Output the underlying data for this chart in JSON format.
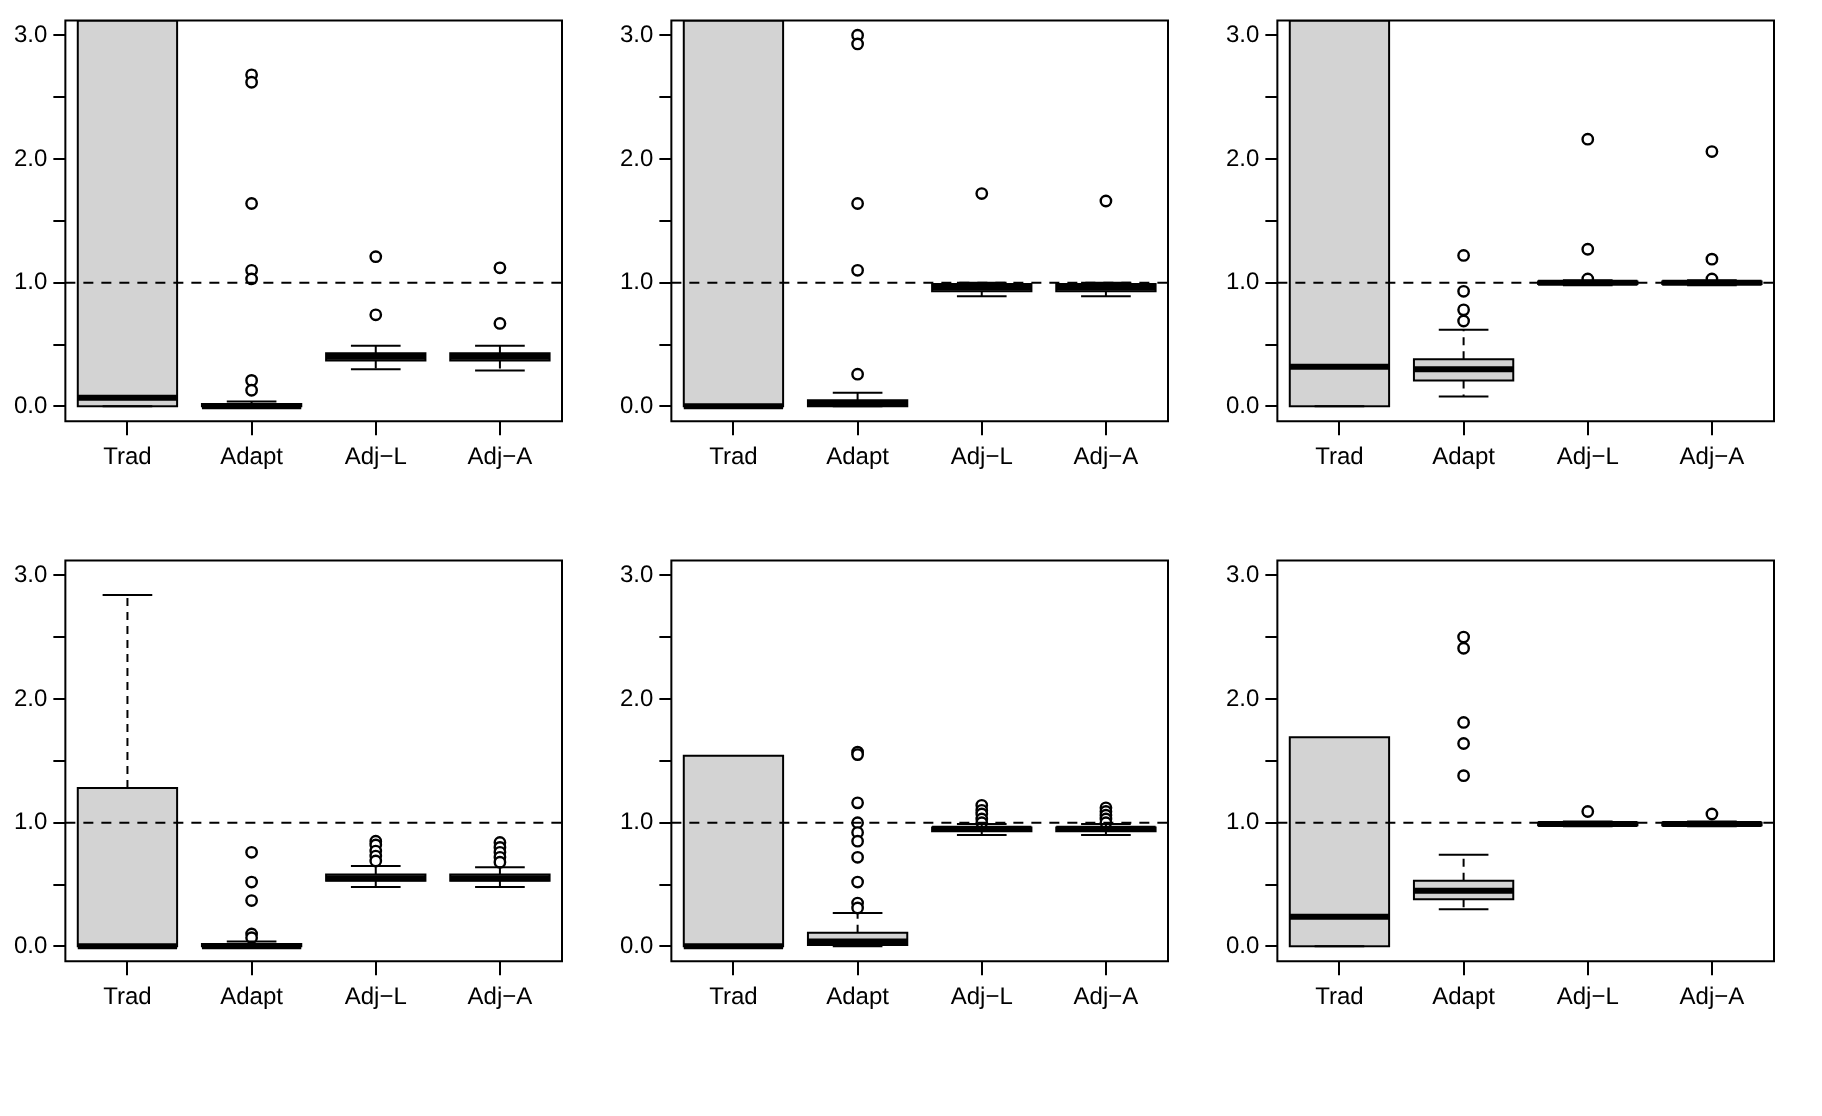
{
  "chart_data": [
    {
      "type": "box",
      "categories": [
        "Trad",
        "Adapt",
        "Adj−L",
        "Adj−A"
      ],
      "color": "#d3d3d3",
      "grid": false,
      "legend": false,
      "ylim": [
        -0.12,
        3.12
      ],
      "yticks": [
        {
          "value": 0,
          "label": "0.0"
        },
        {
          "value": 0.5,
          "label": null
        },
        {
          "value": 1,
          "label": "1.0"
        },
        {
          "value": 1.5,
          "label": null
        },
        {
          "value": 2,
          "label": "2.0"
        },
        {
          "value": 2.5,
          "label": null
        },
        {
          "value": 3,
          "label": "3.0"
        }
      ],
      "ref_lines": [
        {
          "axis": "y",
          "value": 1,
          "line_style": "dashed"
        }
      ],
      "boxes": [
        {
          "low": 0,
          "q1": 0,
          "median": 0.07,
          "q3": 3.12,
          "high": null
        },
        {
          "low": 0,
          "q1": 0,
          "median": 0,
          "q3": 0.02,
          "high": 0.04,
          "outliers": [
            0.13,
            0.21,
            1.03,
            1.1,
            1.64,
            2.62,
            2.68
          ]
        },
        {
          "low": 0.3,
          "q1": 0.37,
          "median": 0.4,
          "q3": 0.43,
          "high": 0.49,
          "outliers": [
            0.74,
            1.21
          ]
        },
        {
          "low": 0.29,
          "q1": 0.37,
          "median": 0.4,
          "q3": 0.43,
          "high": 0.49,
          "outliers": [
            0.67,
            1.12
          ]
        }
      ]
    },
    {
      "type": "box",
      "categories": [
        "Trad",
        "Adapt",
        "Adj−L",
        "Adj−A"
      ],
      "color": "#d3d3d3",
      "grid": false,
      "legend": false,
      "ylim": [
        -0.12,
        3.12
      ],
      "yticks": [
        {
          "value": 0,
          "label": "0.0"
        },
        {
          "value": 0.5,
          "label": null
        },
        {
          "value": 1,
          "label": "1.0"
        },
        {
          "value": 1.5,
          "label": null
        },
        {
          "value": 2,
          "label": "2.0"
        },
        {
          "value": 2.5,
          "label": null
        },
        {
          "value": 3,
          "label": "3.0"
        }
      ],
      "ref_lines": [
        {
          "axis": "y",
          "value": 1,
          "line_style": "dashed"
        }
      ],
      "boxes": [
        {
          "low": 0,
          "q1": 0,
          "median": 0,
          "q3": 3.12,
          "high": null
        },
        {
          "low": 0,
          "q1": 0,
          "median": 0.02,
          "q3": 0.05,
          "high": 0.11,
          "outliers": [
            0.26,
            1.1,
            1.64,
            2.93,
            3.0
          ]
        },
        {
          "low": 0.89,
          "q1": 0.93,
          "median": 0.96,
          "q3": 0.99,
          "high": 1.0,
          "outliers": [
            1.72
          ]
        },
        {
          "low": 0.89,
          "q1": 0.93,
          "median": 0.96,
          "q3": 0.99,
          "high": 1.0,
          "outliers": [
            1.66
          ]
        }
      ]
    },
    {
      "type": "box",
      "categories": [
        "Trad",
        "Adapt",
        "Adj−L",
        "Adj−A"
      ],
      "color": "#d3d3d3",
      "grid": false,
      "legend": false,
      "ylim": [
        -0.12,
        3.12
      ],
      "yticks": [
        {
          "value": 0,
          "label": "0.0"
        },
        {
          "value": 0.5,
          "label": null
        },
        {
          "value": 1,
          "label": "1.0"
        },
        {
          "value": 1.5,
          "label": null
        },
        {
          "value": 2,
          "label": "2.0"
        },
        {
          "value": 2.5,
          "label": null
        },
        {
          "value": 3,
          "label": "3.0"
        }
      ],
      "ref_lines": [
        {
          "axis": "y",
          "value": 1,
          "line_style": "dashed"
        }
      ],
      "boxes": [
        {
          "low": 0,
          "q1": 0,
          "median": 0.32,
          "q3": 3.12,
          "high": null
        },
        {
          "low": 0.08,
          "q1": 0.21,
          "median": 0.3,
          "q3": 0.38,
          "high": 0.62,
          "outliers": [
            0.69,
            0.78,
            0.93,
            1.22
          ]
        },
        {
          "low": 0.98,
          "q1": 0.99,
          "median": 1.0,
          "q3": 1.01,
          "high": 1.02,
          "outliers": [
            1.03,
            1.27,
            2.16
          ]
        },
        {
          "low": 0.98,
          "q1": 0.99,
          "median": 1.0,
          "q3": 1.01,
          "high": 1.02,
          "outliers": [
            1.03,
            1.19,
            2.06
          ]
        }
      ]
    },
    {
      "type": "box",
      "categories": [
        "Trad",
        "Adapt",
        "Adj−L",
        "Adj−A"
      ],
      "color": "#d3d3d3",
      "grid": false,
      "legend": false,
      "ylim": [
        -0.12,
        3.12
      ],
      "yticks": [
        {
          "value": 0,
          "label": "0.0"
        },
        {
          "value": 0.5,
          "label": null
        },
        {
          "value": 1,
          "label": "1.0"
        },
        {
          "value": 1.5,
          "label": null
        },
        {
          "value": 2,
          "label": "2.0"
        },
        {
          "value": 2.5,
          "label": null
        },
        {
          "value": 3,
          "label": "3.0"
        }
      ],
      "ref_lines": [
        {
          "axis": "y",
          "value": 1,
          "line_style": "dashed"
        }
      ],
      "boxes": [
        {
          "low": 0,
          "q1": 0,
          "median": 0,
          "q3": 1.28,
          "high": 2.84
        },
        {
          "low": 0,
          "q1": 0,
          "median": 0,
          "q3": 0.02,
          "high": 0.04,
          "outliers": [
            0.07,
            0.1,
            0.37,
            0.52,
            0.76
          ]
        },
        {
          "low": 0.48,
          "q1": 0.53,
          "median": 0.55,
          "q3": 0.58,
          "high": 0.65,
          "outliers": [
            0.69,
            0.73,
            0.77,
            0.82,
            0.85
          ]
        },
        {
          "low": 0.48,
          "q1": 0.53,
          "median": 0.55,
          "q3": 0.58,
          "high": 0.64,
          "outliers": [
            0.68,
            0.72,
            0.76,
            0.8,
            0.84
          ]
        }
      ]
    },
    {
      "type": "box",
      "categories": [
        "Trad",
        "Adapt",
        "Adj−L",
        "Adj−A"
      ],
      "color": "#d3d3d3",
      "grid": false,
      "legend": false,
      "ylim": [
        -0.12,
        3.12
      ],
      "yticks": [
        {
          "value": 0,
          "label": "0.0"
        },
        {
          "value": 0.5,
          "label": null
        },
        {
          "value": 1,
          "label": "1.0"
        },
        {
          "value": 1.5,
          "label": null
        },
        {
          "value": 2,
          "label": "2.0"
        },
        {
          "value": 2.5,
          "label": null
        },
        {
          "value": 3,
          "label": "3.0"
        }
      ],
      "ref_lines": [
        {
          "axis": "y",
          "value": 1,
          "line_style": "dashed"
        }
      ],
      "boxes": [
        {
          "low": 0,
          "q1": 0,
          "median": 0,
          "q3": 1.54,
          "high": null
        },
        {
          "low": 0,
          "q1": 0.01,
          "median": 0.04,
          "q3": 0.11,
          "high": 0.27,
          "outliers": [
            0.31,
            0.35,
            0.52,
            0.72,
            0.85,
            0.92,
            1.0,
            1.16,
            1.55,
            1.57
          ]
        },
        {
          "low": 0.9,
          "q1": 0.93,
          "median": 0.95,
          "q3": 0.96,
          "high": 0.99,
          "outliers": [
            1.0,
            1.03,
            1.07,
            1.1,
            1.14
          ]
        },
        {
          "low": 0.9,
          "q1": 0.93,
          "median": 0.95,
          "q3": 0.96,
          "high": 0.99,
          "outliers": [
            1.0,
            1.03,
            1.06,
            1.09,
            1.12
          ]
        }
      ]
    },
    {
      "type": "box",
      "categories": [
        "Trad",
        "Adapt",
        "Adj−L",
        "Adj−A"
      ],
      "color": "#d3d3d3",
      "grid": false,
      "legend": false,
      "ylim": [
        -0.12,
        3.12
      ],
      "yticks": [
        {
          "value": 0,
          "label": "0.0"
        },
        {
          "value": 0.5,
          "label": null
        },
        {
          "value": 1,
          "label": "1.0"
        },
        {
          "value": 1.5,
          "label": null
        },
        {
          "value": 2,
          "label": "2.0"
        },
        {
          "value": 2.5,
          "label": null
        },
        {
          "value": 3,
          "label": "3.0"
        }
      ],
      "ref_lines": [
        {
          "axis": "y",
          "value": 1,
          "line_style": "dashed"
        }
      ],
      "boxes": [
        {
          "low": 0,
          "q1": 0,
          "median": 0.24,
          "q3": 1.69,
          "high": null
        },
        {
          "low": 0.3,
          "q1": 0.38,
          "median": 0.45,
          "q3": 0.53,
          "high": 0.74,
          "outliers": [
            1.38,
            1.64,
            1.81,
            2.41,
            2.5
          ]
        },
        {
          "low": 0.97,
          "q1": 0.98,
          "median": 0.99,
          "q3": 1.0,
          "high": 1.01,
          "outliers": [
            1.09
          ]
        },
        {
          "low": 0.97,
          "q1": 0.98,
          "median": 0.99,
          "q3": 1.0,
          "high": 1.01,
          "outliers": [
            1.07
          ]
        }
      ]
    }
  ]
}
